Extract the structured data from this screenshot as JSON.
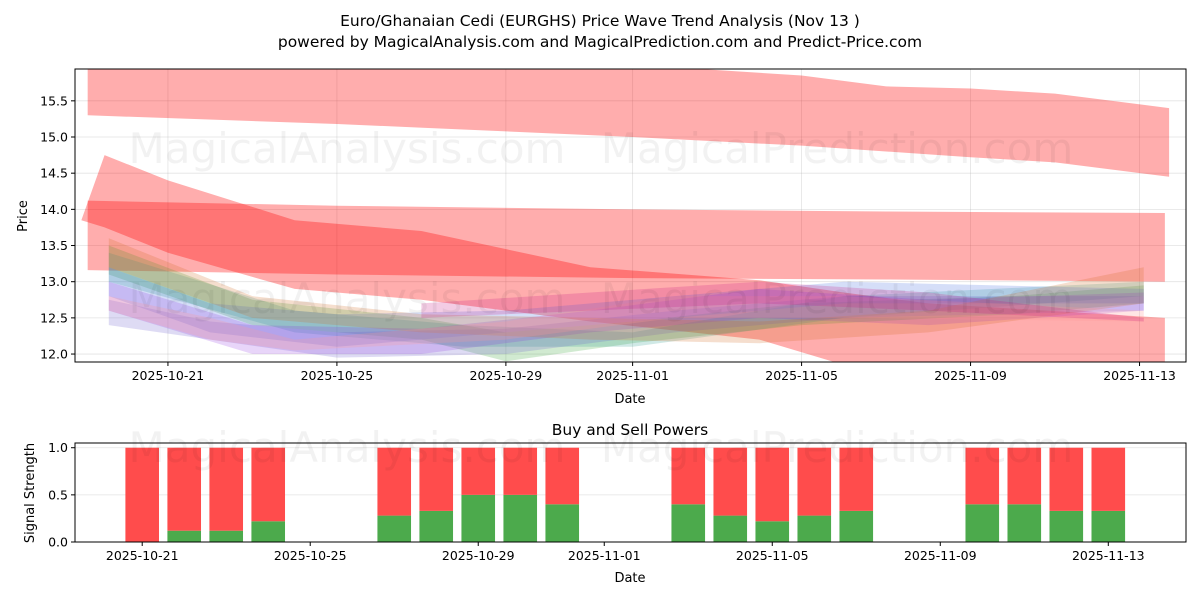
{
  "title_line1": "Euro/Ghanaian Cedi (EURGHS) Price Wave Trend Analysis (Nov 13 )",
  "title_line2": "powered by MagicalAnalysis.com and MagicalPrediction.com and Predict-Price.com",
  "watermarks": [
    "MagicalAnalysis.com",
    "MagicalPrediction.com"
  ],
  "chart_data": [
    {
      "type": "area",
      "title": "",
      "xlabel": "Date",
      "ylabel": "Price",
      "x_origin": "2025-10-21",
      "x_unit": "days since x_origin",
      "xlim": [
        -2.2,
        24.1
      ],
      "ylim": [
        11.89,
        15.94
      ],
      "grid": true,
      "xticks": [
        {
          "day": 0,
          "label": "2025-10-21"
        },
        {
          "day": 4,
          "label": "2025-10-25"
        },
        {
          "day": 8,
          "label": "2025-10-29"
        },
        {
          "day": 11,
          "label": "2025-11-01"
        },
        {
          "day": 15,
          "label": "2025-11-05"
        },
        {
          "day": 19,
          "label": "2025-11-09"
        },
        {
          "day": 23,
          "label": "2025-11-13"
        }
      ],
      "yticks": [
        12.0,
        12.5,
        13.0,
        13.5,
        14.0,
        14.5,
        15.0,
        15.5
      ],
      "bands": [
        {
          "name": "upper-wave",
          "color": "#ff0000",
          "alpha": 0.32,
          "points": [
            [
              -1.9,
              16.1,
              15.3
            ],
            [
              4,
              16.1,
              15.18
            ],
            [
              11,
              16.0,
              15.0
            ],
            [
              15,
              15.85,
              14.88
            ],
            [
              17,
              15.7,
              14.8
            ],
            [
              19,
              15.67,
              14.72
            ],
            [
              21,
              15.6,
              14.65
            ],
            [
              23.7,
              15.4,
              14.45
            ]
          ]
        },
        {
          "name": "flat-wave",
          "color": "#ff0000",
          "alpha": 0.32,
          "points": [
            [
              -1.9,
              14.12,
              13.16
            ],
            [
              4,
              14.05,
              13.1
            ],
            [
              11,
              14.0,
              13.05
            ],
            [
              17,
              13.97,
              13.03
            ],
            [
              23.6,
              13.95,
              13.0
            ]
          ]
        },
        {
          "name": "falling-wave",
          "color": "#ff0000",
          "alpha": 0.32,
          "points": [
            [
              -2.05,
              13.85,
              13.85
            ],
            [
              -1.5,
              14.75,
              13.75
            ],
            [
              0,
              14.4,
              13.4
            ],
            [
              3,
              13.85,
              12.9
            ],
            [
              6,
              13.7,
              12.75
            ],
            [
              10,
              13.2,
              12.45
            ],
            [
              14,
              13.02,
              12.2
            ],
            [
              16,
              12.85,
              11.85
            ],
            [
              18,
              12.7,
              11.7
            ],
            [
              23.6,
              12.5,
              11.55
            ]
          ]
        },
        {
          "name": "green-wave",
          "color": "#2ca02c",
          "alpha": 0.22,
          "points": [
            [
              -1.4,
              13.5,
              13.1
            ],
            [
              2,
              12.75,
              12.4
            ],
            [
              6,
              12.5,
              12.2
            ],
            [
              8,
              12.3,
              11.9
            ],
            [
              11,
              12.45,
              12.15
            ],
            [
              15,
              12.7,
              12.4
            ],
            [
              20,
              12.8,
              12.55
            ],
            [
              23.1,
              12.95,
              12.7
            ]
          ]
        },
        {
          "name": "teal-wave",
          "color": "#2a9d8f",
          "alpha": 0.22,
          "points": [
            [
              -1.4,
              13.4,
              13.0
            ],
            [
              3,
              12.6,
              12.3
            ],
            [
              7,
              12.4,
              12.1
            ],
            [
              11,
              12.3,
              12.1
            ],
            [
              16,
              12.8,
              12.5
            ],
            [
              23.1,
              13.0,
              12.8
            ]
          ]
        },
        {
          "name": "blue-wave-1",
          "color": "#4169e1",
          "alpha": 0.22,
          "points": [
            [
              -1.4,
              13.2,
              12.8
            ],
            [
              1,
              12.7,
              12.3
            ],
            [
              4,
              12.55,
              12.1
            ],
            [
              8,
              12.6,
              12.3
            ],
            [
              12,
              12.8,
              12.5
            ],
            [
              16,
              13.0,
              12.7
            ],
            [
              23.1,
              12.9,
              12.7
            ]
          ]
        },
        {
          "name": "blue-wave-2",
          "color": "#6a5acd",
          "alpha": 0.22,
          "points": [
            [
              -1.4,
              12.75,
              12.4
            ],
            [
              1,
              12.45,
              12.2
            ],
            [
              4,
              12.3,
              11.95
            ],
            [
              8,
              12.35,
              12.0
            ],
            [
              12,
              12.6,
              12.3
            ],
            [
              16,
              12.8,
              12.5
            ],
            [
              23.1,
              12.8,
              12.6
            ]
          ]
        },
        {
          "name": "purple-wave",
          "color": "#8a2be2",
          "alpha": 0.2,
          "points": [
            [
              -1.4,
              13.0,
              12.6
            ],
            [
              2,
              12.4,
              12.0
            ],
            [
              6,
              12.35,
              12.0
            ],
            [
              10,
              12.6,
              12.3
            ],
            [
              14,
              12.9,
              12.5
            ],
            [
              18,
              12.75,
              12.4
            ],
            [
              23.1,
              12.85,
              12.6
            ]
          ]
        },
        {
          "name": "orange-wave",
          "color": "#d2691e",
          "alpha": 0.22,
          "points": [
            [
              -1.4,
              13.6,
              13.2
            ],
            [
              2,
              12.8,
              12.5
            ],
            [
              6,
              12.55,
              12.3
            ],
            [
              10,
              12.5,
              12.2
            ],
            [
              14,
              12.45,
              12.15
            ],
            [
              18,
              12.6,
              12.3
            ],
            [
              23.1,
              13.2,
              12.7
            ]
          ]
        },
        {
          "name": "pink-wave",
          "color": "#ff9999",
          "alpha": 0.25,
          "points": [
            [
              -1.4,
              12.8,
              12.6
            ],
            [
              1,
              12.5,
              12.2
            ],
            [
              3,
              12.2,
              12.05
            ],
            [
              8,
              12.45,
              12.2
            ],
            [
              12,
              12.8,
              12.5
            ],
            [
              16,
              12.8,
              12.5
            ],
            [
              23.1,
              12.6,
              12.45
            ]
          ]
        },
        {
          "name": "magenta-wave",
          "color": "#c71585",
          "alpha": 0.22,
          "points": [
            [
              6,
              12.7,
              12.5
            ],
            [
              10,
              12.85,
              12.6
            ],
            [
              14,
              13.0,
              12.7
            ],
            [
              18,
              12.85,
              12.6
            ],
            [
              23.1,
              12.5,
              12.45
            ]
          ]
        }
      ]
    },
    {
      "type": "bar",
      "title": "Buy and Sell Powers",
      "xlabel": "Date",
      "ylabel": "Signal Strength",
      "x_origin": "2025-10-21",
      "xlim": [
        -1.6,
        24.85
      ],
      "ylim": [
        0,
        1.05
      ],
      "yticks": [
        0.0,
        0.5,
        1.0
      ],
      "xticks": [
        {
          "day": 0,
          "label": "2025-10-21"
        },
        {
          "day": 4,
          "label": "2025-10-25"
        },
        {
          "day": 8,
          "label": "2025-10-29"
        },
        {
          "day": 11,
          "label": "2025-11-01"
        },
        {
          "day": 15,
          "label": "2025-11-05"
        },
        {
          "day": 19,
          "label": "2025-11-09"
        },
        {
          "day": 23,
          "label": "2025-11-13"
        }
      ],
      "buy_color": "#4caa4c",
      "sell_color": "#ff4c4c",
      "categories": [
        "2025-10-21",
        "2025-10-22",
        "2025-10-23",
        "2025-10-24",
        "2025-10-27",
        "2025-10-28",
        "2025-10-29",
        "2025-10-30",
        "2025-10-31",
        "2025-11-03",
        "2025-11-04",
        "2025-11-05",
        "2025-11-06",
        "2025-11-07",
        "2025-11-10",
        "2025-11-11",
        "2025-11-12",
        "2025-11-13"
      ],
      "days": [
        0,
        1,
        2,
        3,
        6,
        7,
        8,
        9,
        10,
        13,
        14,
        15,
        16,
        17,
        20,
        21,
        22,
        23
      ],
      "series": [
        {
          "name": "Buy",
          "values": [
            0.0,
            0.12,
            0.12,
            0.22,
            0.28,
            0.33,
            0.5,
            0.5,
            0.4,
            0.4,
            0.28,
            0.22,
            0.28,
            0.33,
            0.4,
            0.4,
            0.33,
            0.33
          ]
        },
        {
          "name": "Sell",
          "values": [
            1.0,
            0.88,
            0.88,
            0.78,
            0.72,
            0.67,
            0.5,
            0.5,
            0.6,
            0.6,
            0.72,
            0.78,
            0.72,
            0.67,
            0.6,
            0.6,
            0.67,
            0.67
          ]
        }
      ]
    }
  ]
}
